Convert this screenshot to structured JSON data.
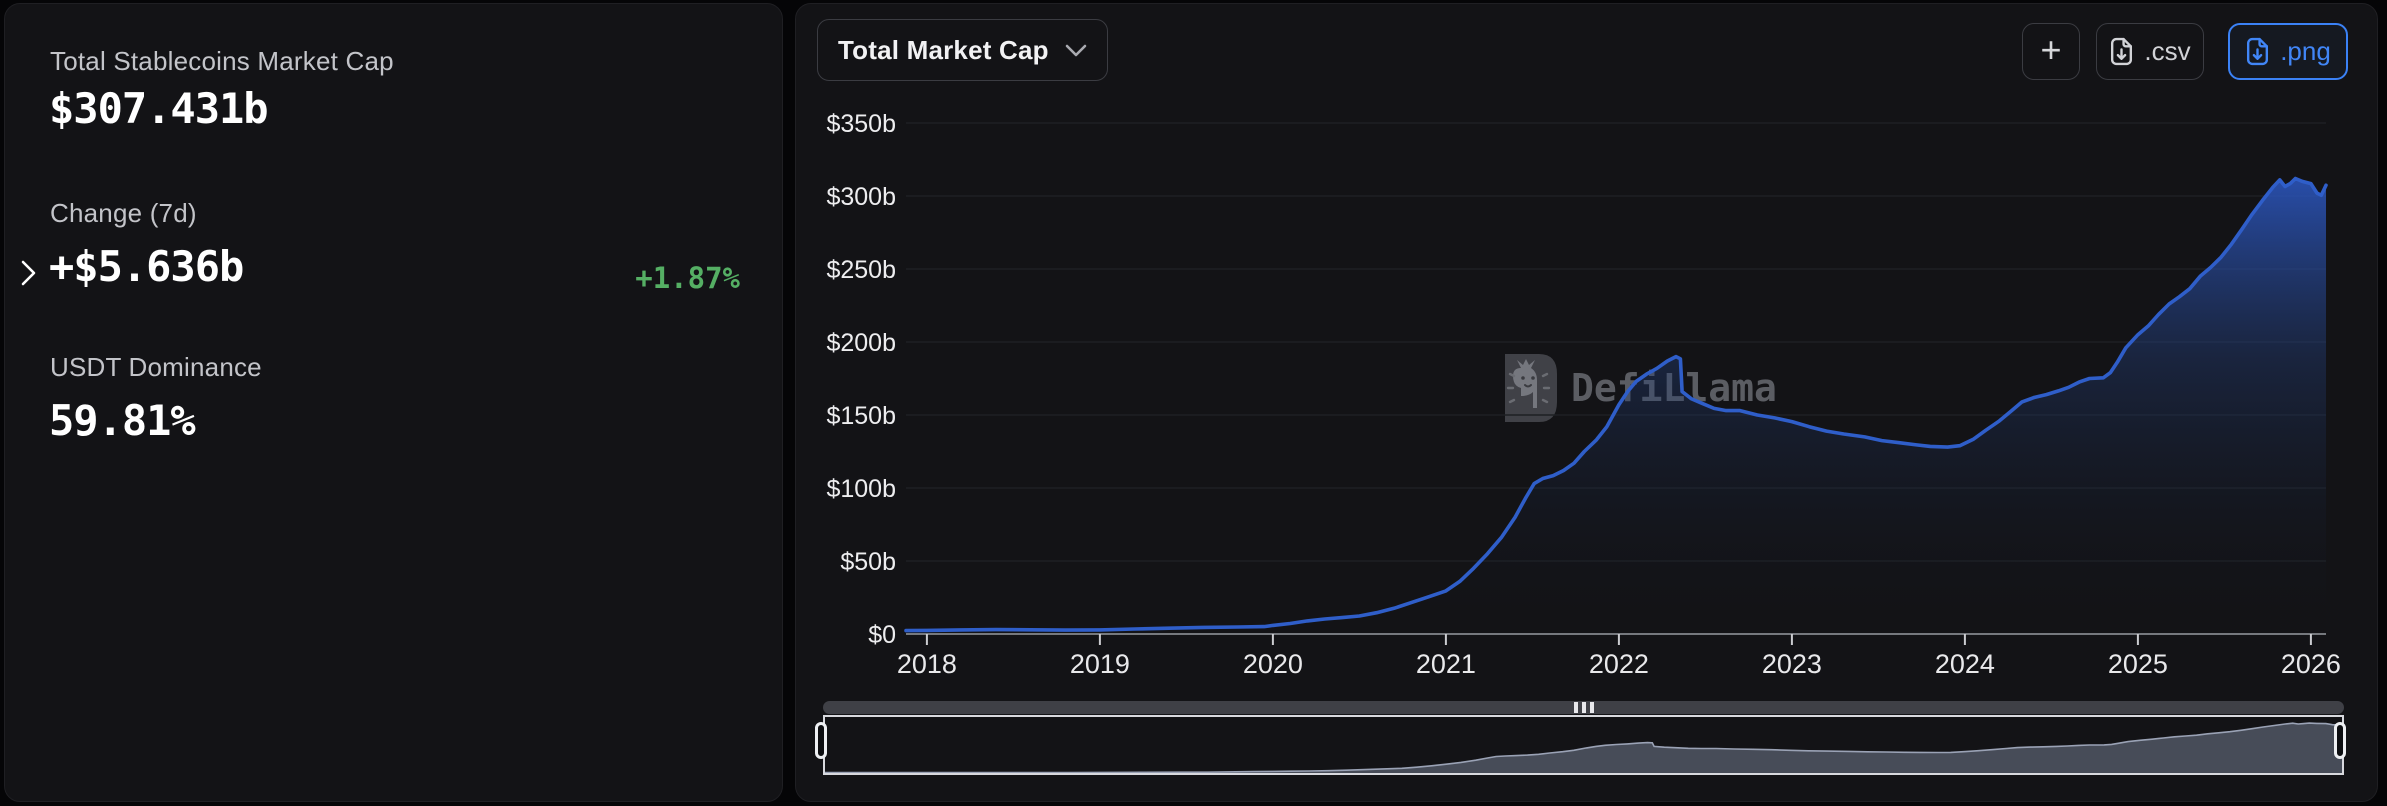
{
  "left_panel": {
    "market_cap_label": "Total Stablecoins Market Cap",
    "market_cap_value": "$307.431b",
    "change_label": "Change (7d)",
    "change_value": "+$5.636b",
    "change_percent": "+1.87%",
    "dominance_label": "USDT Dominance",
    "dominance_value": "59.81%"
  },
  "toolbar": {
    "metric_selector": "Total Market Cap",
    "add_label": "+",
    "csv_label": ".csv",
    "png_label": ".png"
  },
  "watermark": {
    "text": "DefiLlama"
  },
  "colors": {
    "background": "#050507",
    "card": "#131316",
    "line_blue": "#2f5ec9",
    "export_blue": "#3b82f6",
    "positive_green": "#55af64",
    "label_gray": "#c3c4c9"
  },
  "chart_data": {
    "type": "area",
    "title": "Total Market Cap",
    "series_name": "Total Stablecoins Market Cap",
    "unit": "USD billions",
    "xlabel": "",
    "ylabel": "",
    "grid": "horizontal",
    "legend": "none",
    "x_domain": [
      2017.879,
      2026.087
    ],
    "x_ticks": [
      2018,
      2019,
      2020,
      2021,
      2022,
      2023,
      2024,
      2025,
      2026
    ],
    "y_max": 350,
    "y_tick_step": 50,
    "y_tick_labels": [
      "$0",
      "$50b",
      "$100b",
      "$150b",
      "$200b",
      "$250b",
      "$300b",
      "$350b"
    ],
    "points": [
      [
        2017.879,
        2.3
      ],
      [
        2018.0,
        2.5
      ],
      [
        2018.2,
        2.8
      ],
      [
        2018.4,
        3.0
      ],
      [
        2018.6,
        2.9
      ],
      [
        2018.8,
        2.7
      ],
      [
        2019.0,
        2.8
      ],
      [
        2019.2,
        3.4
      ],
      [
        2019.4,
        4.0
      ],
      [
        2019.6,
        4.5
      ],
      [
        2019.8,
        4.8
      ],
      [
        2019.95,
        5.1
      ],
      [
        2020.0,
        5.9
      ],
      [
        2020.1,
        7.2
      ],
      [
        2020.2,
        9.0
      ],
      [
        2020.3,
        10.3
      ],
      [
        2020.4,
        11.2
      ],
      [
        2020.5,
        12.3
      ],
      [
        2020.6,
        14.6
      ],
      [
        2020.7,
        17.6
      ],
      [
        2020.8,
        21.5
      ],
      [
        2020.9,
        25.5
      ],
      [
        2021.0,
        29.5
      ],
      [
        2021.08,
        36
      ],
      [
        2021.16,
        45
      ],
      [
        2021.24,
        55
      ],
      [
        2021.32,
        66
      ],
      [
        2021.4,
        80
      ],
      [
        2021.46,
        93
      ],
      [
        2021.51,
        103
      ],
      [
        2021.56,
        106.5
      ],
      [
        2021.62,
        108.5
      ],
      [
        2021.68,
        112
      ],
      [
        2021.74,
        117
      ],
      [
        2021.8,
        125
      ],
      [
        2021.87,
        133
      ],
      [
        2021.93,
        142
      ],
      [
        2022.0,
        157
      ],
      [
        2022.05,
        166
      ],
      [
        2022.1,
        173
      ],
      [
        2022.16,
        178
      ],
      [
        2022.22,
        182
      ],
      [
        2022.28,
        187
      ],
      [
        2022.33,
        190
      ],
      [
        2022.355,
        188.5
      ],
      [
        2022.365,
        166
      ],
      [
        2022.42,
        161
      ],
      [
        2022.48,
        158
      ],
      [
        2022.55,
        154.5
      ],
      [
        2022.62,
        153
      ],
      [
        2022.7,
        153
      ],
      [
        2022.8,
        150
      ],
      [
        2022.9,
        148
      ],
      [
        2023.0,
        145.5
      ],
      [
        2023.1,
        142
      ],
      [
        2023.2,
        139
      ],
      [
        2023.3,
        137
      ],
      [
        2023.42,
        135
      ],
      [
        2023.52,
        132.5
      ],
      [
        2023.62,
        131
      ],
      [
        2023.72,
        129.5
      ],
      [
        2023.8,
        128.5
      ],
      [
        2023.9,
        128
      ],
      [
        2023.97,
        129
      ],
      [
        2024.05,
        133.5
      ],
      [
        2024.12,
        139.5
      ],
      [
        2024.2,
        146
      ],
      [
        2024.27,
        153
      ],
      [
        2024.33,
        159
      ],
      [
        2024.4,
        162
      ],
      [
        2024.47,
        164
      ],
      [
        2024.54,
        166.5
      ],
      [
        2024.6,
        169
      ],
      [
        2024.66,
        172.5
      ],
      [
        2024.72,
        175
      ],
      [
        2024.8,
        175.5
      ],
      [
        2024.84,
        179
      ],
      [
        2024.88,
        186
      ],
      [
        2024.93,
        196
      ],
      [
        2025.0,
        205
      ],
      [
        2025.06,
        211
      ],
      [
        2025.12,
        219
      ],
      [
        2025.18,
        226
      ],
      [
        2025.24,
        231
      ],
      [
        2025.3,
        236.5
      ],
      [
        2025.36,
        245
      ],
      [
        2025.42,
        251
      ],
      [
        2025.48,
        258
      ],
      [
        2025.54,
        267
      ],
      [
        2025.6,
        277
      ],
      [
        2025.66,
        287.5
      ],
      [
        2025.72,
        297
      ],
      [
        2025.78,
        306
      ],
      [
        2025.82,
        311
      ],
      [
        2025.85,
        306.5
      ],
      [
        2025.88,
        308.5
      ],
      [
        2025.91,
        312
      ],
      [
        2025.95,
        310
      ],
      [
        2026.0,
        308.5
      ],
      [
        2026.035,
        302
      ],
      [
        2026.06,
        300.5
      ],
      [
        2026.087,
        307.431
      ]
    ]
  }
}
